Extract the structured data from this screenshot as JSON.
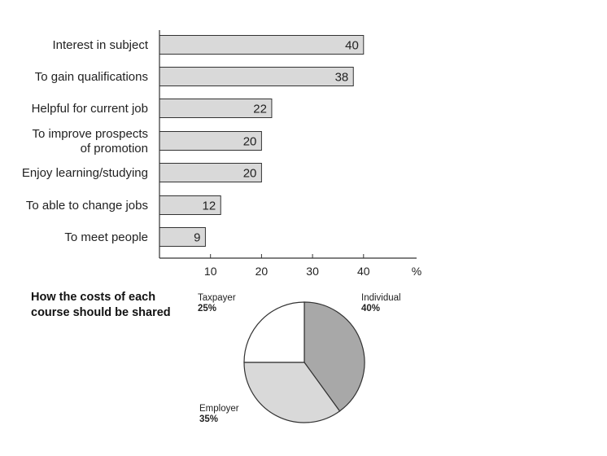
{
  "chart_data": [
    {
      "type": "bar",
      "orientation": "horizontal",
      "categories": [
        [
          "Interest in subject"
        ],
        [
          "To gain qualifications"
        ],
        [
          "Helpful for current job"
        ],
        [
          "To improve prospects",
          "of promotion"
        ],
        [
          "Enjoy learning/studying"
        ],
        [
          "To able to change jobs"
        ],
        [
          "To meet people"
        ]
      ],
      "values": [
        40,
        38,
        22,
        20,
        20,
        12,
        9
      ],
      "data_labels": [
        "40",
        "38",
        "22",
        "20",
        "20",
        "12",
        "9"
      ],
      "xlim": [
        0,
        50
      ],
      "xticks": [
        10,
        20,
        30,
        40
      ],
      "xtick_labels": [
        "10",
        "20",
        "30",
        "40"
      ],
      "xunit": "%",
      "bar_color": "#d9d9d9",
      "grid": false
    },
    {
      "type": "pie",
      "title": "How the costs of each course should be shared",
      "slices": [
        {
          "label": "Individual",
          "pct_label": "40%",
          "value": 40,
          "color": "#a8a8a8"
        },
        {
          "label": "Employer",
          "pct_label": "35%",
          "value": 35,
          "color": "#d9d9d9"
        },
        {
          "label": "Taxpayer",
          "pct_label": "25%",
          "value": 25,
          "color": "#ffffff"
        }
      ]
    }
  ]
}
